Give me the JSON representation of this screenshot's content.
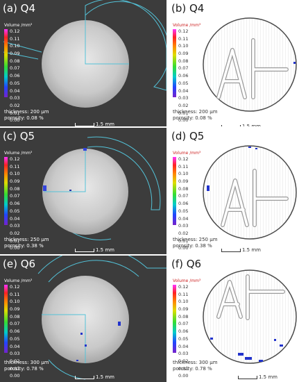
{
  "colorbar": {
    "title": "Volume /mm³",
    "ticks": [
      "0.12",
      "0.11",
      "0.10",
      "0.09",
      "0.08",
      "0.07",
      "0.06",
      "0.05",
      "0.04",
      "0.03",
      "0.02",
      "0.01",
      "0.00"
    ]
  },
  "scale_label": "1.5 mm",
  "panels": [
    {
      "label": "(a) Q4",
      "thickness": "thickness: 200 µm",
      "porosity": "porosity:   0.08 %"
    },
    {
      "label": "(b) Q4",
      "thickness": "thickness: 200 µm",
      "porosity": "porosity:   0.08 %"
    },
    {
      "label": "(c) Q5",
      "thickness": "thickness: 250 µm",
      "porosity": "porosity:   0.38 %"
    },
    {
      "label": "(d) Q5",
      "thickness": "thickness: 250 µm",
      "porosity": "porosity:   0.38 %"
    },
    {
      "label": "(e) Q6",
      "thickness": "thickness: 300 µm",
      "porosity": "porosity:   0.78 %"
    },
    {
      "label": "(f) Q6",
      "thickness": "thickness: 300 µm",
      "porosity": "porosity:   0.78 %"
    }
  ]
}
